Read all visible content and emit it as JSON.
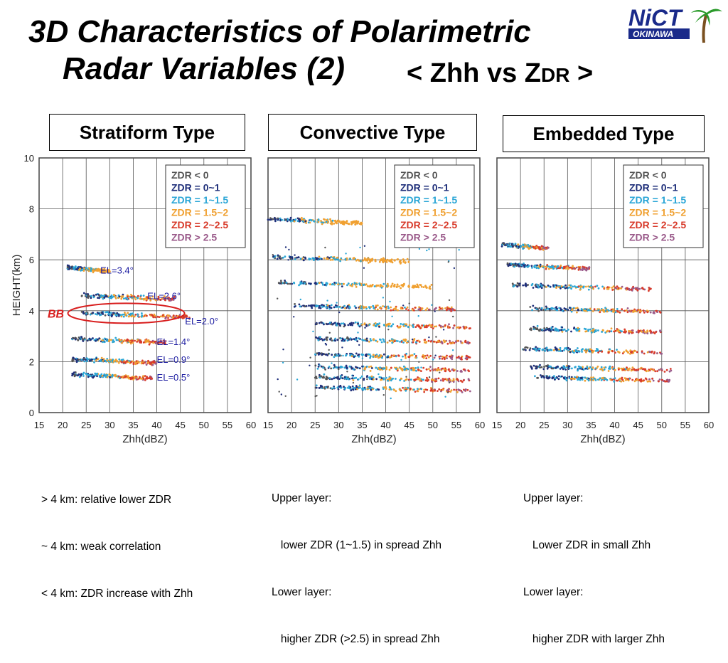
{
  "title": {
    "line1": "3D Characteristics of Polarimetric",
    "line2": "Radar Variables (2)",
    "subtitle_prefix": "< Zhh vs Z",
    "subtitle_sub": "DR",
    "subtitle_suffix": " >"
  },
  "logo": {
    "text": "NiCT",
    "subtext": "OKINAWA"
  },
  "panels": [
    {
      "type_label": "Stratiform Type",
      "notes": [
        "> 4 km: relative lower ZDR",
        "~ 4 km: weak correlation",
        "< 4 km: ZDR increase with Zhh"
      ]
    },
    {
      "type_label": "Convective Type",
      "notes": [
        "Upper layer:",
        "   lower ZDR (1~1.5) in spread Zhh",
        "Lower layer:",
        "   higher ZDR (>2.5) in spread Zhh"
      ]
    },
    {
      "type_label": "Embedded Type",
      "notes": [
        "Upper layer:",
        "   Lower ZDR in small Zhh",
        "Lower layer:",
        "   higher ZDR with larger Zhh"
      ]
    }
  ],
  "chart_data": [
    {
      "type": "scatter",
      "title": "Stratiform Type",
      "xlabel": "Zhh(dBZ)",
      "ylabel": "HEIGHT(km)",
      "xlim": [
        15,
        60
      ],
      "ylim": [
        0,
        10
      ],
      "xticks": [
        15,
        20,
        25,
        30,
        35,
        40,
        45,
        50,
        55,
        60
      ],
      "yticks": [
        0,
        2,
        4,
        6,
        8,
        10
      ],
      "grid": true,
      "legend_position": "top-right",
      "legend": [
        {
          "label": "ZDR < 0",
          "color": "#555555"
        },
        {
          "label": "ZDR = 0~1",
          "color": "#1f2f7a"
        },
        {
          "label": "ZDR = 1~1.5",
          "color": "#2aa6d6"
        },
        {
          "label": "ZDR = 1.5~2",
          "color": "#f0a030"
        },
        {
          "label": "ZDR = 2~2.5",
          "color": "#d83a2a"
        },
        {
          "label": "ZDR > 2.5",
          "color": "#9a5a8a"
        }
      ],
      "layers": [
        {
          "height": 1.5,
          "x_range": [
            22,
            39
          ],
          "label": "EL=0.5°"
        },
        {
          "height": 2.1,
          "x_range": [
            22,
            40
          ],
          "label": "EL=0.9°"
        },
        {
          "height": 2.9,
          "x_range": [
            22,
            42
          ],
          "label": "EL=1.4°"
        },
        {
          "height": 3.9,
          "x_range": [
            24,
            47
          ],
          "label": "EL=2.0°"
        },
        {
          "height": 4.6,
          "x_range": [
            24,
            44
          ],
          "label": "EL=2.6°"
        },
        {
          "height": 5.7,
          "x_range": [
            21,
            30
          ],
          "label": "EL=3.4°"
        }
      ],
      "annotation": "BB"
    },
    {
      "type": "scatter",
      "title": "Convective Type",
      "xlabel": "Zhh(dBZ)",
      "xlim": [
        15,
        60
      ],
      "ylim": [
        0,
        10
      ],
      "xticks": [
        15,
        20,
        25,
        30,
        35,
        40,
        45,
        50,
        55,
        60
      ],
      "grid": true,
      "legend_position": "top-right",
      "legend": [
        {
          "label": "ZDR < 0",
          "color": "#555555"
        },
        {
          "label": "ZDR = 0~1",
          "color": "#1f2f7a"
        },
        {
          "label": "ZDR = 1~1.5",
          "color": "#2aa6d6"
        },
        {
          "label": "ZDR = 1.5~2",
          "color": "#f0a030"
        },
        {
          "label": "ZDR = 2~2.5",
          "color": "#d83a2a"
        },
        {
          "label": "ZDR > 2.5",
          "color": "#9a5a8a"
        }
      ],
      "layers": [
        {
          "height": 1.0,
          "x_range": [
            25,
            58
          ]
        },
        {
          "height": 1.4,
          "x_range": [
            25,
            58
          ]
        },
        {
          "height": 1.8,
          "x_range": [
            25,
            58
          ]
        },
        {
          "height": 2.3,
          "x_range": [
            25,
            58
          ]
        },
        {
          "height": 2.9,
          "x_range": [
            25,
            58
          ]
        },
        {
          "height": 3.5,
          "x_range": [
            25,
            58
          ]
        },
        {
          "height": 4.2,
          "x_range": [
            20,
            55
          ]
        },
        {
          "height": 5.1,
          "x_range": [
            17,
            50
          ]
        },
        {
          "height": 6.1,
          "x_range": [
            16,
            45
          ]
        },
        {
          "height": 7.6,
          "x_range": [
            15,
            35
          ]
        }
      ]
    },
    {
      "type": "scatter",
      "title": "Embedded Type",
      "xlabel": "Zhh(dBZ)",
      "xlim": [
        15,
        60
      ],
      "ylim": [
        0,
        10
      ],
      "xticks": [
        15,
        20,
        25,
        30,
        35,
        40,
        45,
        50,
        55,
        60
      ],
      "grid": true,
      "legend_position": "top-right",
      "legend": [
        {
          "label": "ZDR < 0",
          "color": "#555555"
        },
        {
          "label": "ZDR = 0~1",
          "color": "#1f2f7a"
        },
        {
          "label": "ZDR = 1~1.5",
          "color": "#2aa6d6"
        },
        {
          "label": "ZDR = 1.5~2",
          "color": "#f0a030"
        },
        {
          "label": "ZDR = 2~2.5",
          "color": "#d83a2a"
        },
        {
          "label": "ZDR > 2.5",
          "color": "#9a5a8a"
        }
      ],
      "layers": [
        {
          "height": 1.4,
          "x_range": [
            22,
            52
          ]
        },
        {
          "height": 1.8,
          "x_range": [
            22,
            52
          ]
        },
        {
          "height": 2.5,
          "x_range": [
            20,
            50
          ]
        },
        {
          "height": 3.3,
          "x_range": [
            22,
            50
          ]
        },
        {
          "height": 4.1,
          "x_range": [
            22,
            50
          ]
        },
        {
          "height": 5.0,
          "x_range": [
            18,
            48
          ]
        },
        {
          "height": 5.8,
          "x_range": [
            17,
            35
          ]
        },
        {
          "height": 6.6,
          "x_range": [
            16,
            26
          ]
        }
      ]
    }
  ]
}
